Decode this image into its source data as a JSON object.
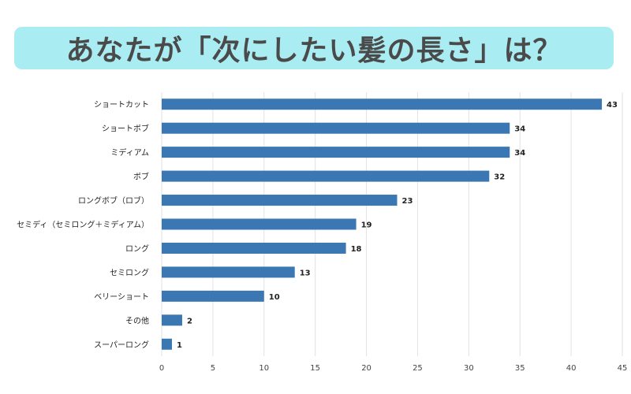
{
  "title": "あなたが「次にしたい髪の長さ」は？",
  "colors": {
    "banner": "#a9ecf2",
    "bar": "#3a77b3",
    "grid": "#e2e2e2"
  },
  "chart_data": {
    "type": "bar",
    "orientation": "horizontal",
    "categories": [
      "ショートカット",
      "ショートボブ",
      "ミディアム",
      "ボブ",
      "ロングボブ（ロブ）",
      "セミディ（セミロング＋ミディアム）",
      "ロング",
      "セミロング",
      "ベリーショート",
      "その他",
      "スーパーロング"
    ],
    "values": [
      43,
      34,
      34,
      32,
      23,
      19,
      18,
      13,
      10,
      2,
      1
    ],
    "xlim": [
      0,
      45
    ],
    "xticks": [
      0,
      5,
      10,
      15,
      20,
      25,
      30,
      35,
      40,
      45
    ],
    "grid": true,
    "data_labels": true
  }
}
